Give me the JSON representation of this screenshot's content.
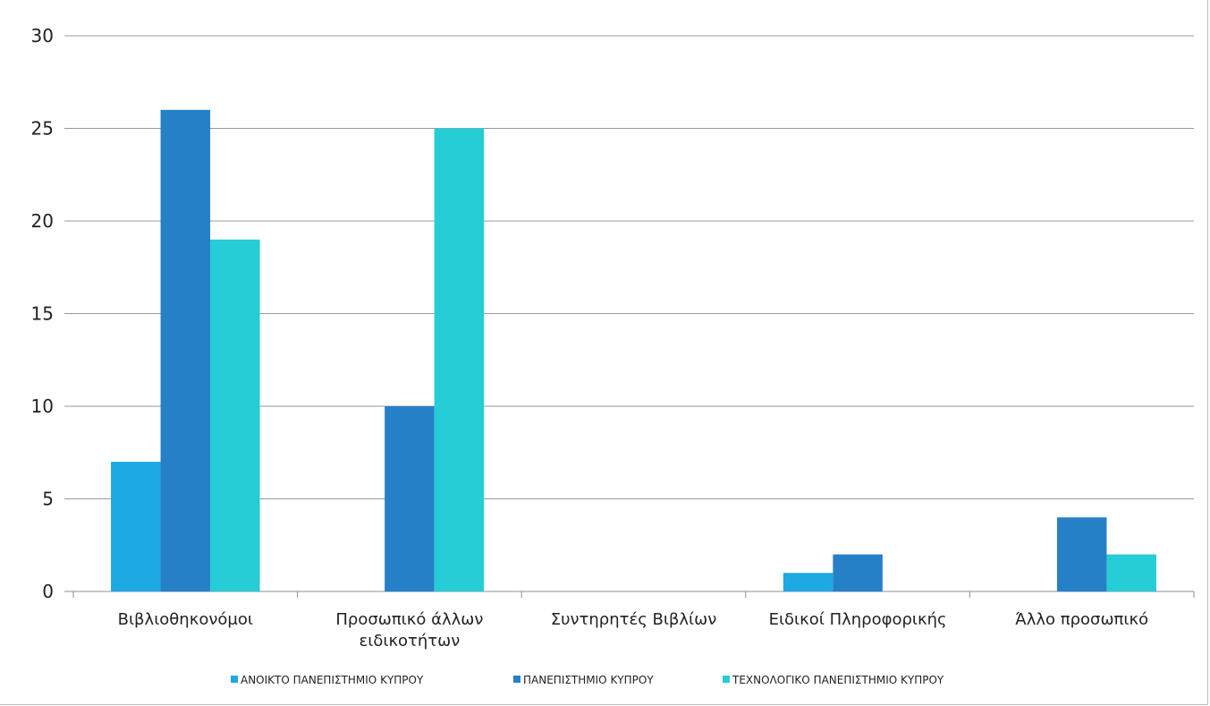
{
  "chart_data": {
    "type": "bar",
    "categories": [
      [
        "Βιβλιοθηκονόμοι"
      ],
      [
        "Προσωπικό άλλων",
        "ειδικοτήτων"
      ],
      [
        "Συντηρητές Βιβλίων"
      ],
      [
        "Ειδικοί Πληροφορικής"
      ],
      [
        "Άλλο προσωπικό"
      ]
    ],
    "series": [
      {
        "name": "ΑΝΟΙΚΤΟ ΠΑΝΕΠΙΣΤΗΜΙΟ ΚΥΠΡΟΥ",
        "color": "#1da9e1",
        "values": [
          7,
          0,
          0,
          1,
          0
        ]
      },
      {
        "name": "ΠΑΝΕΠΙΣΤΗΜΙΟ ΚΥΠΡΟΥ",
        "color": "#2680c8",
        "values": [
          26,
          10,
          0,
          2,
          4
        ]
      },
      {
        "name": "ΤΕΧΝΟΛΟΓΙΚΟ ΠΑΝΕΠΙΣΤΗΜΙΟ ΚΥΠΡΟΥ",
        "color": "#26ccd6",
        "values": [
          19,
          25,
          0,
          0,
          2
        ]
      }
    ],
    "ylim": [
      0,
      30
    ],
    "yticks": [
      0,
      5,
      10,
      15,
      20,
      25,
      30
    ],
    "grid": true,
    "legend": "bottom"
  }
}
